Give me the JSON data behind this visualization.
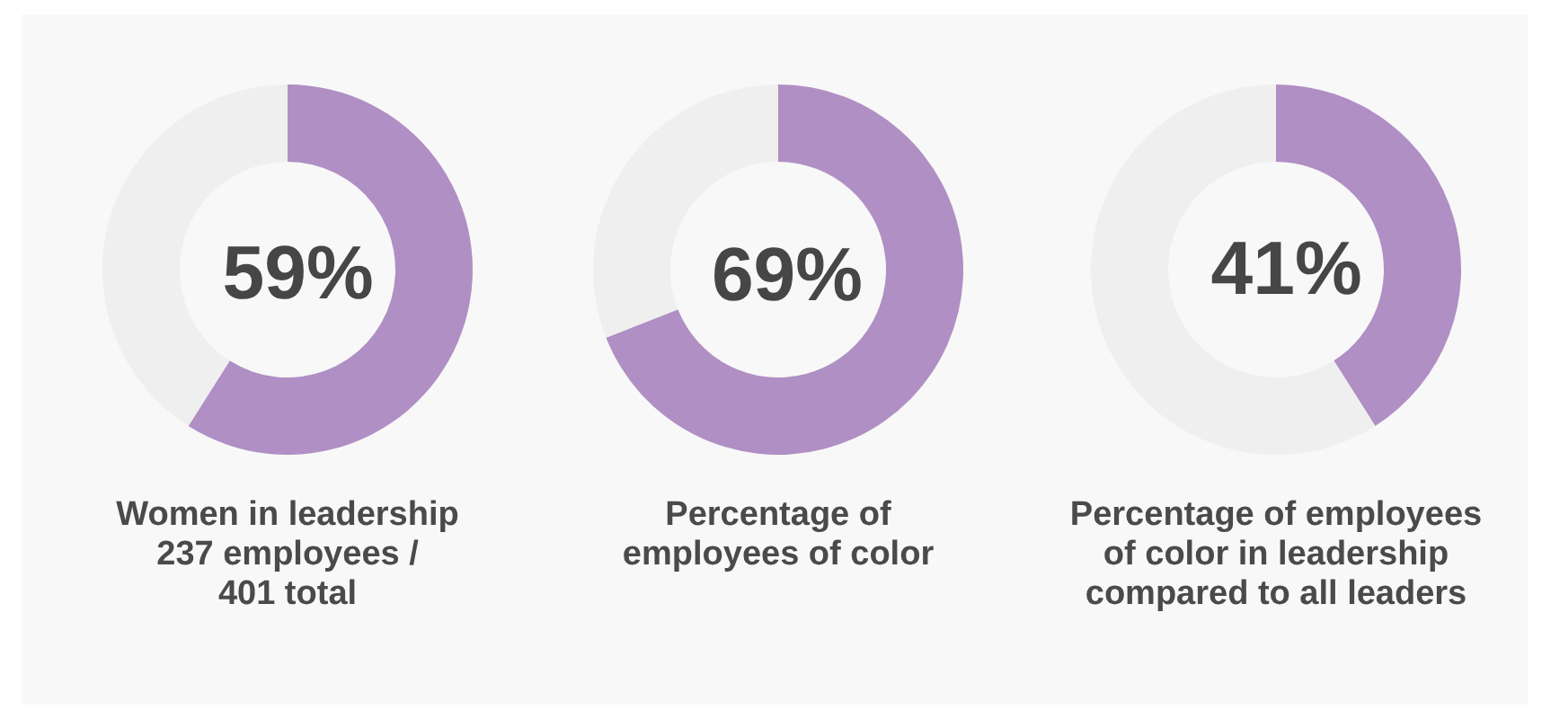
{
  "chart_data": [
    {
      "type": "donut",
      "title": "Women in leadership\n237 employees /\n401 total",
      "categories": [
        null,
        null
      ],
      "values": [
        59,
        41
      ],
      "colors": [
        "#b08fc4",
        "#efefef"
      ],
      "value_labels": [
        "59%",
        null
      ]
    },
    {
      "type": "donut",
      "title": "Percentage of\nemployees of color",
      "categories": [
        null,
        null
      ],
      "values": [
        69,
        31
      ],
      "colors": [
        "#b08fc4",
        "#efefef"
      ],
      "value_labels": [
        "69%",
        null
      ]
    },
    {
      "type": "donut",
      "title": "Percentage of employees\nof color in leadership\ncompared to all leaders",
      "categories": [
        null,
        null
      ],
      "values": [
        41,
        59
      ],
      "colors": [
        "#b08fc4",
        "#efefef"
      ],
      "value_labels": [
        "41%",
        null
      ]
    }
  ]
}
